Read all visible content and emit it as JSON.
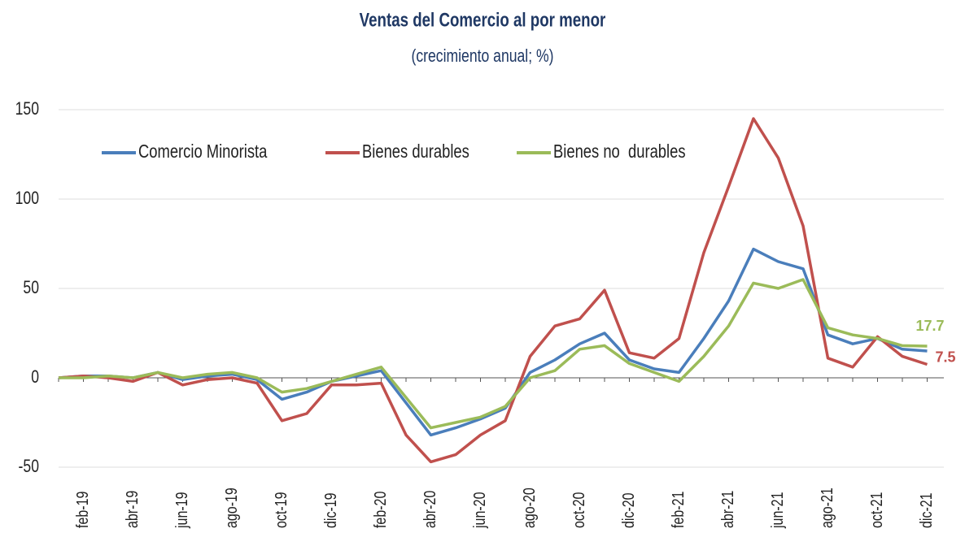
{
  "chart_data": {
    "type": "line",
    "title": "Ventas del Comercio al por menor",
    "subtitle": "(crecimiento anual; %)",
    "categories": [
      null,
      "feb-19",
      null,
      "abr-19",
      null,
      "jun-19",
      null,
      "ago-19",
      null,
      "oct-19",
      null,
      "dic-19",
      null,
      "feb-20",
      null,
      "abr-20",
      null,
      "jun-20",
      null,
      "ago-20",
      null,
      "oct-20",
      null,
      "dic-20",
      null,
      "feb-21",
      null,
      "abr-21",
      null,
      "jun-21",
      null,
      "ago-21",
      null,
      "oct-21",
      null,
      "dic-21"
    ],
    "series": [
      {
        "name": "Comercio Minorista",
        "color": "#4a7ebb",
        "values": [
          0,
          1,
          1,
          0,
          3,
          -1,
          1,
          2,
          -1,
          -12,
          -8,
          -2,
          1,
          4,
          -14,
          -32,
          -28,
          -23,
          -17,
          3,
          10,
          19,
          25,
          10,
          5,
          3,
          22,
          43,
          72,
          65,
          61,
          24,
          19,
          22,
          16,
          15
        ]
      },
      {
        "name": "Bienes durables",
        "color": "#c0504d",
        "values": [
          0,
          1,
          0,
          -2,
          3,
          -4,
          -1,
          0,
          -3,
          -24,
          -20,
          -4,
          -4,
          -3,
          -32,
          -47,
          -43,
          -32,
          -24,
          12,
          29,
          33,
          49,
          14,
          11,
          22,
          70,
          107,
          145,
          123,
          85,
          11,
          6,
          23,
          12,
          7.5
        ]
      },
      {
        "name": "Bienes no  durables",
        "color": "#9bbb59",
        "values": [
          0,
          0,
          1,
          0,
          3,
          0,
          2,
          3,
          0,
          -8,
          -6,
          -2,
          2,
          6,
          -11,
          -28,
          -25,
          -22,
          -16,
          0,
          4,
          16,
          18,
          8,
          3,
          -2,
          12,
          29,
          53,
          50,
          55,
          28,
          24,
          22,
          18,
          17.7
        ]
      }
    ],
    "ylim": [
      -50,
      150
    ],
    "yticks": [
      -50,
      0,
      50,
      100,
      150
    ],
    "grid": true
  }
}
